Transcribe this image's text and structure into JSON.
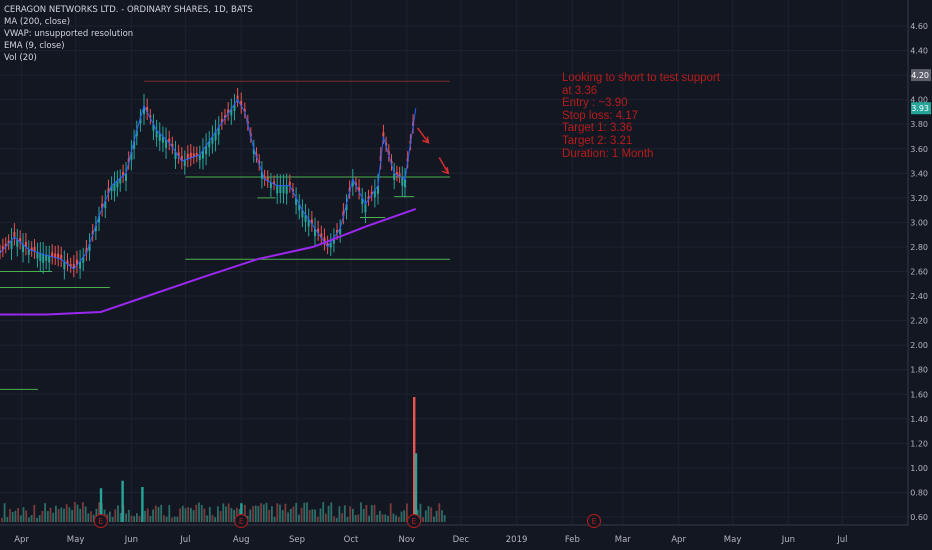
{
  "chart_data": {
    "type": "candlestick",
    "title": "CERAGON NETWORKS LTD. - ORDINARY SHARES, 1D, BATS",
    "indicators": [
      "MA (200, close)",
      "VWAP: unsupported resolution",
      "EMA (9, close)",
      "Vol (20)"
    ],
    "x_tick_labels": [
      "Apr",
      "May",
      "Jun",
      "Jul",
      "Aug",
      "Sep",
      "Oct",
      "Nov",
      "Dec",
      "2019",
      "Feb",
      "Mar",
      "Apr",
      "May",
      "Jun",
      "Jul"
    ],
    "price_axis": {
      "ylim": [
        0.5,
        4.8
      ],
      "ticks": [
        4.6,
        4.4,
        4.2,
        4.0,
        3.8,
        3.6,
        3.4,
        3.2,
        3.0,
        2.8,
        2.6,
        2.4,
        2.2,
        2.0,
        1.8,
        1.6,
        1.4,
        1.2,
        1.0,
        0.8,
        0.6
      ],
      "highlight_labels": [
        {
          "value": 4.2,
          "text": "4.20",
          "color": "#5d606b"
        },
        {
          "value": 3.93,
          "text": "3.93",
          "color": "#26a69a"
        }
      ]
    },
    "price_series": {
      "name": "CERAGON",
      "points": [
        {
          "date": "2018-03-20",
          "close": 2.75
        },
        {
          "date": "2018-03-28",
          "close": 2.88
        },
        {
          "date": "2018-04-05",
          "close": 2.78
        },
        {
          "date": "2018-04-13",
          "close": 2.74
        },
        {
          "date": "2018-04-23",
          "close": 2.7
        },
        {
          "date": "2018-04-30",
          "close": 2.62
        },
        {
          "date": "2018-05-07",
          "close": 2.75
        },
        {
          "date": "2018-05-14",
          "close": 3.05
        },
        {
          "date": "2018-05-21",
          "close": 3.3
        },
        {
          "date": "2018-05-29",
          "close": 3.4
        },
        {
          "date": "2018-06-04",
          "close": 3.75
        },
        {
          "date": "2018-06-08",
          "close": 3.95
        },
        {
          "date": "2018-06-15",
          "close": 3.75
        },
        {
          "date": "2018-06-22",
          "close": 3.65
        },
        {
          "date": "2018-06-29",
          "close": 3.5
        },
        {
          "date": "2018-07-09",
          "close": 3.55
        },
        {
          "date": "2018-07-16",
          "close": 3.7
        },
        {
          "date": "2018-07-23",
          "close": 3.85
        },
        {
          "date": "2018-07-30",
          "close": 4.0
        },
        {
          "date": "2018-08-03",
          "close": 3.9
        },
        {
          "date": "2018-08-08",
          "close": 3.6
        },
        {
          "date": "2018-08-14",
          "close": 3.35
        },
        {
          "date": "2018-08-21",
          "close": 3.3
        },
        {
          "date": "2018-08-28",
          "close": 3.3
        },
        {
          "date": "2018-09-04",
          "close": 3.1
        },
        {
          "date": "2018-09-11",
          "close": 2.95
        },
        {
          "date": "2018-09-18",
          "close": 2.8
        },
        {
          "date": "2018-09-25",
          "close": 2.95
        },
        {
          "date": "2018-10-02",
          "close": 3.35
        },
        {
          "date": "2018-10-09",
          "close": 3.15
        },
        {
          "date": "2018-10-16",
          "close": 3.3
        },
        {
          "date": "2018-10-19",
          "close": 3.7
        },
        {
          "date": "2018-10-25",
          "close": 3.4
        },
        {
          "date": "2018-10-31",
          "close": 3.35
        },
        {
          "date": "2018-11-06",
          "close": 3.93
        }
      ]
    },
    "ma200": {
      "name": "MA (200, close)",
      "color": "#9c27f0",
      "points": [
        {
          "date": "2018-03-20",
          "value": 2.25
        },
        {
          "date": "2018-04-15",
          "value": 2.25
        },
        {
          "date": "2018-05-15",
          "value": 2.27
        },
        {
          "date": "2018-06-10",
          "value": 2.4
        },
        {
          "date": "2018-07-10",
          "value": 2.55
        },
        {
          "date": "2018-08-10",
          "value": 2.7
        },
        {
          "date": "2018-09-10",
          "value": 2.8
        },
        {
          "date": "2018-10-10",
          "value": 2.97
        },
        {
          "date": "2018-11-06",
          "value": 3.11
        }
      ]
    },
    "volume": {
      "name": "Vol (20)",
      "note": "volume bars drawn at the bottom of the price pane",
      "spikes": [
        {
          "date": "2018-05-27",
          "rel": 0.33
        },
        {
          "date": "2018-05-15",
          "rel": 0.27
        },
        {
          "date": "2018-06-07",
          "rel": 0.28
        },
        {
          "date": "2018-08-01",
          "rel": 0.15
        },
        {
          "date": "2018-11-05",
          "rel": 1.0
        },
        {
          "date": "2018-11-06",
          "rel": 0.55
        }
      ]
    },
    "horizontal_lines": [
      {
        "name": "resistance",
        "price": 4.15,
        "from": "2018-06-08",
        "to": "2018-11-25",
        "color": "#7a2a2a"
      },
      {
        "name": "support-1",
        "price": 3.37,
        "from": "2018-07-01",
        "to": "2018-11-25",
        "color": "#4caf50"
      },
      {
        "name": "support-2",
        "price": 2.7,
        "from": "2018-07-01",
        "to": "2018-11-25",
        "color": "#4caf50"
      },
      {
        "name": "support-3",
        "price": 3.21,
        "from": "2018-10-25",
        "to": "2018-11-05",
        "color": "#4caf50"
      },
      {
        "name": "support-4",
        "price": 3.2,
        "from": "2018-08-10",
        "to": "2018-08-20",
        "color": "#4caf50"
      },
      {
        "name": "support-5",
        "price": 3.04,
        "from": "2018-10-06",
        "to": "2018-10-20",
        "color": "#4caf50"
      },
      {
        "name": "support-6",
        "price": 2.47,
        "from": "2018-03-20",
        "to": "2018-05-20",
        "color": "#4caf50"
      },
      {
        "name": "support-7",
        "price": 2.6,
        "from": "2018-03-20",
        "to": "2018-04-18",
        "color": "#4caf50"
      },
      {
        "name": "low-line",
        "price": 1.64,
        "from": "2018-03-20",
        "to": "2018-04-10",
        "color": "#4caf50"
      }
    ],
    "earnings_markers": [
      "2018-05-15",
      "2018-08-01",
      "2018-11-05",
      "2019-02-13"
    ],
    "arrows": [
      {
        "from": "2018-11-07",
        "from_price": 3.77,
        "to": "2018-11-13",
        "to_price": 3.65
      },
      {
        "from": "2018-11-19",
        "from_price": 3.53,
        "to": "2018-11-24",
        "to_price": 3.4
      }
    ],
    "annotation": [
      "Looking to short to test support",
      "at 3.36",
      "Entry : ~3.90",
      "Stop loss: 4.17",
      "Target 1: 3.36",
      "Target 2: 3.21",
      "Duration: 1 Month"
    ]
  }
}
